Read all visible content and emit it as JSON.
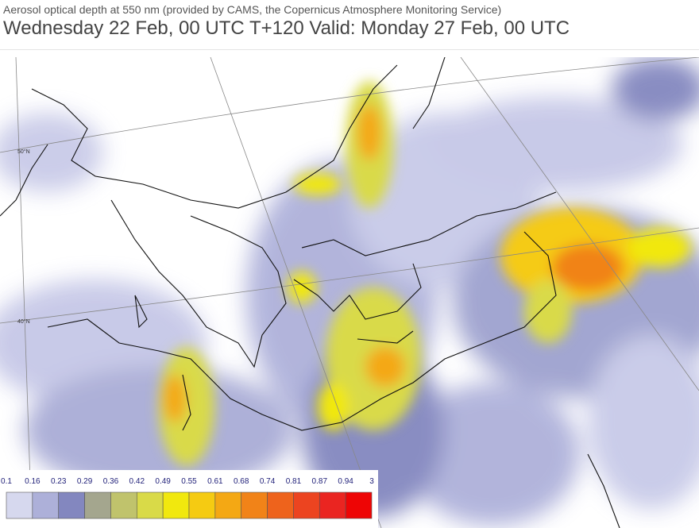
{
  "header": {
    "title": "Aerosol optical depth at 550 nm (provided by CAMS, the Copernicus Atmosphere Monitoring Service)",
    "subtitle": "Wednesday 22 Feb, 00 UTC T+120 Valid: Monday 27 Feb, 00 UTC"
  },
  "map": {
    "grid_labels": [
      "50°N",
      "40°N"
    ]
  },
  "legend": {
    "labels": [
      "0.1",
      "0.16",
      "0.23",
      "0.29",
      "0.36",
      "0.42",
      "0.49",
      "0.55",
      "0.61",
      "0.68",
      "0.74",
      "0.81",
      "0.87",
      "0.94",
      "3"
    ],
    "colors": [
      "#d6d8ee",
      "#adb0d9",
      "#8387bf",
      "#a4a68e",
      "#c0c36c",
      "#d9da48",
      "#f1e80e",
      "#f5cb12",
      "#f4a814",
      "#f18318",
      "#ee631c",
      "#ec4420",
      "#ea2521",
      "#ee0505"
    ]
  }
}
